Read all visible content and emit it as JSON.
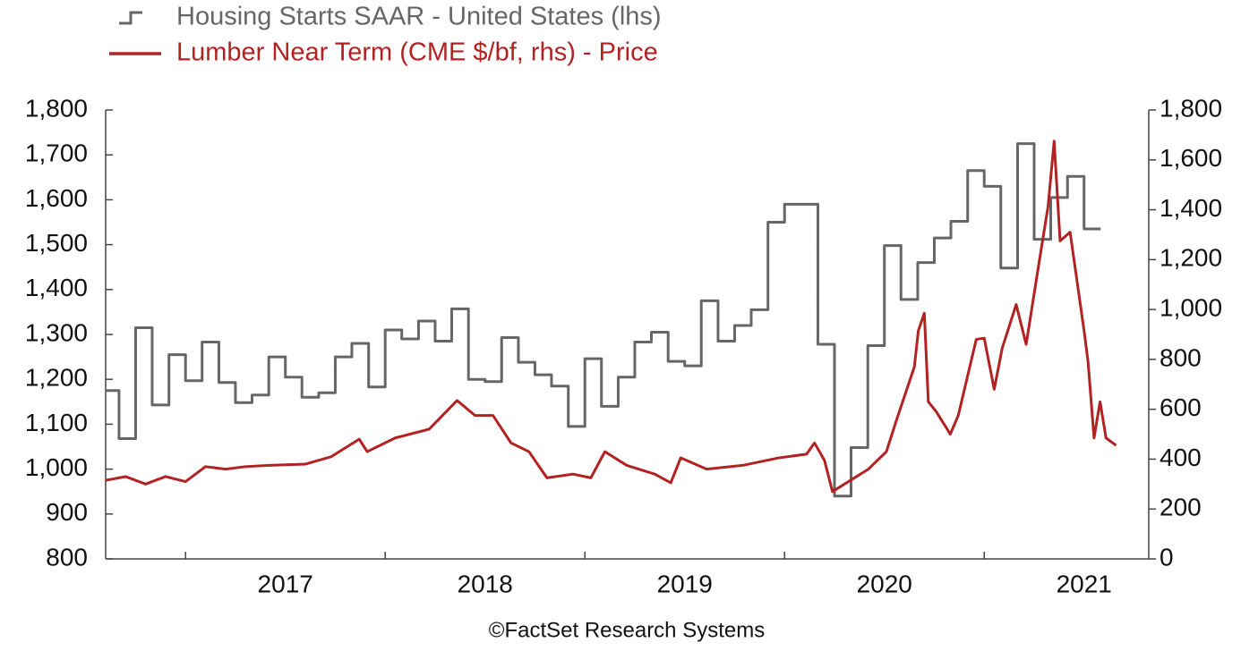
{
  "chart_data": {
    "type": "line",
    "source": "©FactSet Research Systems",
    "xlim": [
      2016.6,
      2021.824
    ],
    "xticks": [
      2017,
      2018,
      2019,
      2020,
      2021
    ],
    "ylim": [
      800,
      1800
    ],
    "yticks": [
      {
        "value": 800,
        "label": "800"
      },
      {
        "value": 900,
        "label": "900"
      },
      {
        "value": 1000,
        "label": "1,000"
      },
      {
        "value": 1100,
        "label": "1,100"
      },
      {
        "value": 1200,
        "label": "1,200"
      },
      {
        "value": 1300,
        "label": "1,300"
      },
      {
        "value": 1400,
        "label": "1,400"
      },
      {
        "value": 1500,
        "label": "1,500"
      },
      {
        "value": 1600,
        "label": "1,600"
      },
      {
        "value": 1700,
        "label": "1,700"
      },
      {
        "value": 1800,
        "label": "1,800"
      }
    ],
    "y2lim": [
      0,
      1800
    ],
    "y2ticks": [
      0,
      200,
      400,
      600,
      800,
      {
        "value": 1000,
        "label": "1,000"
      },
      {
        "value": 1200,
        "label": "1,200"
      },
      {
        "value": 1400,
        "label": "1,400"
      },
      {
        "value": 1600,
        "label": "1,600"
      },
      {
        "value": 1800,
        "label": "1,800"
      }
    ],
    "grid": false,
    "legend": "top-left",
    "series": [
      {
        "name": "Housing Starts SAAR - United States (lhs)",
        "color": "#666666",
        "step": true,
        "axis": "y",
        "x": [
          2016.6,
          2016.667,
          2016.75,
          2016.833,
          2016.917,
          2017,
          2017.083,
          2017.167,
          2017.25,
          2017.333,
          2017.417,
          2017.5,
          2017.583,
          2017.667,
          2017.75,
          2017.833,
          2017.917,
          2018,
          2018.083,
          2018.167,
          2018.25,
          2018.333,
          2018.417,
          2018.5,
          2018.583,
          2018.667,
          2018.75,
          2018.833,
          2018.917,
          2019,
          2019.083,
          2019.167,
          2019.25,
          2019.333,
          2019.417,
          2019.5,
          2019.583,
          2019.667,
          2019.75,
          2019.833,
          2019.917,
          2020,
          2020.083,
          2020.167,
          2020.25,
          2020.333,
          2020.417,
          2020.5,
          2020.583,
          2020.667,
          2020.75,
          2020.833,
          2020.917,
          2021,
          2021.083,
          2021.167,
          2021.25,
          2021.333,
          2021.417,
          2021.5
        ],
        "values": [
          1175,
          1068,
          1315,
          1143,
          1255,
          1197,
          1283,
          1193,
          1148,
          1165,
          1250,
          1205,
          1160,
          1170,
          1250,
          1280,
          1183,
          1310,
          1290,
          1330,
          1285,
          1357,
          1200,
          1195,
          1293,
          1238,
          1210,
          1185,
          1095,
          1246,
          1140,
          1205,
          1283,
          1305,
          1240,
          1230,
          1375,
          1285,
          1320,
          1355,
          1550,
          1590,
          1590,
          1278,
          940,
          1048,
          1275,
          1498,
          1378,
          1460,
          1515,
          1552,
          1665,
          1630,
          1448,
          1725,
          1512,
          1605,
          1652,
          1535
        ]
      },
      {
        "name": "Lumber Near Term (CME $/bf, rhs) - Price",
        "color": "#b22222",
        "axis": "y2",
        "x": [
          2016.6,
          2016.7,
          2016.8,
          2016.9,
          2017.0,
          2017.1,
          2017.2,
          2017.3,
          2017.42,
          2017.6,
          2017.73,
          2017.87,
          2017.91,
          2018.05,
          2018.22,
          2018.36,
          2018.45,
          2018.54,
          2018.63,
          2018.72,
          2018.81,
          2018.94,
          2019.03,
          2019.1,
          2019.21,
          2019.35,
          2019.43,
          2019.48,
          2019.61,
          2019.79,
          2019.97,
          2020.11,
          2020.15,
          2020.2,
          2020.24,
          2020.31,
          2020.42,
          2020.51,
          2020.56,
          2020.65,
          2020.67,
          2020.7,
          2020.72,
          2020.76,
          2020.83,
          2020.87,
          2020.96,
          2021.0,
          2021.05,
          2021.09,
          2021.16,
          2021.21,
          2021.27,
          2021.32,
          2021.35,
          2021.38,
          2021.43,
          2021.5,
          2021.52,
          2021.55,
          2021.58,
          2021.61,
          2021.66
        ],
        "values": [
          315,
          330,
          300,
          330,
          310,
          370,
          360,
          370,
          375,
          380,
          410,
          480,
          430,
          485,
          520,
          635,
          575,
          575,
          465,
          430,
          325,
          340,
          325,
          430,
          375,
          340,
          305,
          405,
          360,
          375,
          405,
          420,
          465,
          395,
          270,
          305,
          360,
          430,
          555,
          770,
          915,
          985,
          630,
          590,
          500,
          575,
          880,
          885,
          680,
          845,
          1020,
          860,
          1165,
          1415,
          1675,
          1275,
          1310,
          915,
          790,
          485,
          630,
          485,
          455
        ]
      }
    ]
  }
}
